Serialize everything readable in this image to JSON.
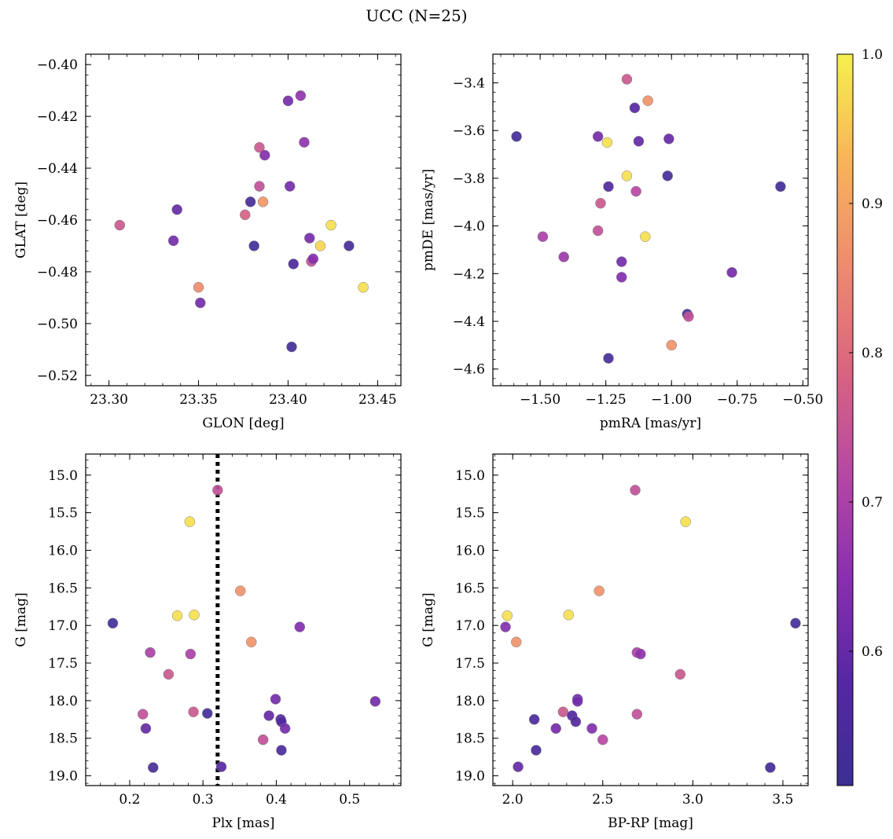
{
  "figure": {
    "suptitle": "UCC (N=25)"
  },
  "colorbar": {
    "cmap": "plasma",
    "range": [
      0.51,
      1.0
    ],
    "ticks": [
      0.6,
      0.7,
      0.8,
      0.9,
      1.0
    ],
    "tick_labels": [
      "0.6",
      "0.7",
      "0.8",
      "0.9",
      "1.0"
    ],
    "stops": [
      "#3b2f94",
      "#5627a2",
      "#8a2fb0",
      "#b748a4",
      "#d9667f",
      "#ee8c6e",
      "#f9b459",
      "#f5f04f"
    ]
  },
  "chart_data": [
    {
      "type": "scatter",
      "title": "",
      "xlabel": "GLON [deg]",
      "ylabel": "GLAT [deg]",
      "xlim": [
        23.287,
        23.463
      ],
      "ylim": [
        -0.524,
        -0.396
      ],
      "xticks": [
        23.3,
        23.35,
        23.4,
        23.45
      ],
      "xtick_labels": [
        "23.30",
        "23.35",
        "23.40",
        "23.45"
      ],
      "yticks": [
        -0.4,
        -0.42,
        -0.44,
        -0.46,
        -0.48,
        -0.5,
        -0.52
      ],
      "ytick_labels": [
        "−0.40",
        "−0.42",
        "−0.44",
        "−0.46",
        "−0.48",
        "−0.50",
        "−0.52"
      ],
      "points": [
        {
          "x": 23.306,
          "y": -0.462,
          "c": 0.76
        },
        {
          "x": 23.338,
          "y": -0.456,
          "c": 0.6
        },
        {
          "x": 23.336,
          "y": -0.468,
          "c": 0.62
        },
        {
          "x": 23.35,
          "y": -0.486,
          "c": 0.86
        },
        {
          "x": 23.351,
          "y": -0.492,
          "c": 0.62
        },
        {
          "x": 23.376,
          "y": -0.458,
          "c": 0.78
        },
        {
          "x": 23.379,
          "y": -0.453,
          "c": 0.54
        },
        {
          "x": 23.381,
          "y": -0.47,
          "c": 0.53
        },
        {
          "x": 23.384,
          "y": -0.432,
          "c": 0.76
        },
        {
          "x": 23.384,
          "y": -0.447,
          "c": 0.74
        },
        {
          "x": 23.386,
          "y": -0.453,
          "c": 0.88
        },
        {
          "x": 23.387,
          "y": -0.435,
          "c": 0.64
        },
        {
          "x": 23.4,
          "y": -0.414,
          "c": 0.62
        },
        {
          "x": 23.401,
          "y": -0.447,
          "c": 0.62
        },
        {
          "x": 23.402,
          "y": -0.509,
          "c": 0.53
        },
        {
          "x": 23.403,
          "y": -0.477,
          "c": 0.55
        },
        {
          "x": 23.407,
          "y": -0.412,
          "c": 0.66
        },
        {
          "x": 23.409,
          "y": -0.43,
          "c": 0.66
        },
        {
          "x": 23.412,
          "y": -0.467,
          "c": 0.62
        },
        {
          "x": 23.413,
          "y": -0.476,
          "c": 0.74
        },
        {
          "x": 23.414,
          "y": -0.475,
          "c": 0.64
        },
        {
          "x": 23.418,
          "y": -0.47,
          "c": 0.97
        },
        {
          "x": 23.424,
          "y": -0.462,
          "c": 0.98
        },
        {
          "x": 23.434,
          "y": -0.47,
          "c": 0.54
        },
        {
          "x": 23.442,
          "y": -0.486,
          "c": 0.98
        }
      ]
    },
    {
      "type": "scatter",
      "title": "",
      "xlabel": "pmRA [mas/yr]",
      "ylabel": "pmDE [mas/yr]",
      "xlim": [
        -1.68,
        -0.48
      ],
      "ylim": [
        -4.67,
        -3.28
      ],
      "xticks": [
        -1.5,
        -1.25,
        -1.0,
        -0.75,
        -0.5
      ],
      "xtick_labels": [
        "−1.50",
        "−1.25",
        "−1.00",
        "−0.75",
        "−0.50"
      ],
      "yticks": [
        -3.4,
        -3.6,
        -3.8,
        -4.0,
        -4.2,
        -4.4,
        -4.6
      ],
      "ytick_labels": [
        "−3.4",
        "−3.6",
        "−3.8",
        "−4.0",
        "−4.2",
        "−4.4",
        "−4.6"
      ],
      "points": [
        {
          "x": -1.59,
          "y": -3.625,
          "c": 0.53
        },
        {
          "x": -1.49,
          "y": -4.045,
          "c": 0.7
        },
        {
          "x": -1.41,
          "y": -4.13,
          "c": 0.68
        },
        {
          "x": -1.28,
          "y": -3.625,
          "c": 0.62
        },
        {
          "x": -1.28,
          "y": -4.02,
          "c": 0.74
        },
        {
          "x": -1.27,
          "y": -3.905,
          "c": 0.76
        },
        {
          "x": -1.245,
          "y": -3.65,
          "c": 0.98
        },
        {
          "x": -1.24,
          "y": -3.835,
          "c": 0.57
        },
        {
          "x": -1.24,
          "y": -4.555,
          "c": 0.54
        },
        {
          "x": -1.19,
          "y": -4.15,
          "c": 0.62
        },
        {
          "x": -1.19,
          "y": -4.215,
          "c": 0.64
        },
        {
          "x": -1.17,
          "y": -3.385,
          "c": 0.76
        },
        {
          "x": -1.17,
          "y": -3.79,
          "c": 0.98
        },
        {
          "x": -1.14,
          "y": -3.505,
          "c": 0.58
        },
        {
          "x": -1.135,
          "y": -3.855,
          "c": 0.72
        },
        {
          "x": -1.125,
          "y": -3.645,
          "c": 0.6
        },
        {
          "x": -1.1,
          "y": -4.045,
          "c": 0.98
        },
        {
          "x": -1.09,
          "y": -3.475,
          "c": 0.87
        },
        {
          "x": -1.015,
          "y": -3.79,
          "c": 0.54
        },
        {
          "x": -1.01,
          "y": -3.635,
          "c": 0.6
        },
        {
          "x": -1.0,
          "y": -4.5,
          "c": 0.87
        },
        {
          "x": -0.94,
          "y": -4.37,
          "c": 0.53
        },
        {
          "x": -0.935,
          "y": -4.38,
          "c": 0.74
        },
        {
          "x": -0.77,
          "y": -4.195,
          "c": 0.62
        },
        {
          "x": -0.585,
          "y": -3.835,
          "c": 0.53
        }
      ]
    },
    {
      "type": "scatter",
      "title": "",
      "xlabel": "Plx [mas]",
      "ylabel": "G [mag]",
      "xlim": [
        0.14,
        0.57
      ],
      "ylim": [
        19.13,
        14.72
      ],
      "inverted_y": true,
      "vline": {
        "x": 0.32,
        "style": "dotted",
        "color": "#000000"
      },
      "xticks": [
        0.2,
        0.3,
        0.4,
        0.5
      ],
      "xtick_labels": [
        "0.2",
        "0.3",
        "0.4",
        "0.5"
      ],
      "yticks": [
        15.0,
        15.5,
        16.0,
        16.5,
        17.0,
        17.5,
        18.0,
        18.5,
        19.0
      ],
      "ytick_labels": [
        "15.0",
        "15.5",
        "16.0",
        "16.5",
        "17.0",
        "17.5",
        "18.0",
        "18.5",
        "19.0"
      ],
      "points": [
        {
          "x": 0.177,
          "y": 16.97,
          "c": 0.53
        },
        {
          "x": 0.218,
          "y": 18.18,
          "c": 0.74
        },
        {
          "x": 0.222,
          "y": 18.37,
          "c": 0.6
        },
        {
          "x": 0.228,
          "y": 17.36,
          "c": 0.7
        },
        {
          "x": 0.232,
          "y": 18.89,
          "c": 0.54
        },
        {
          "x": 0.253,
          "y": 17.65,
          "c": 0.76
        },
        {
          "x": 0.265,
          "y": 16.87,
          "c": 0.98
        },
        {
          "x": 0.282,
          "y": 15.62,
          "c": 0.98
        },
        {
          "x": 0.283,
          "y": 17.38,
          "c": 0.7
        },
        {
          "x": 0.287,
          "y": 18.15,
          "c": 0.76
        },
        {
          "x": 0.288,
          "y": 16.86,
          "c": 0.98
        },
        {
          "x": 0.306,
          "y": 18.17,
          "c": 0.53
        },
        {
          "x": 0.32,
          "y": 15.2,
          "c": 0.74
        },
        {
          "x": 0.325,
          "y": 18.88,
          "c": 0.58
        },
        {
          "x": 0.351,
          "y": 16.54,
          "c": 0.87
        },
        {
          "x": 0.366,
          "y": 17.22,
          "c": 0.87
        },
        {
          "x": 0.382,
          "y": 18.52,
          "c": 0.74
        },
        {
          "x": 0.39,
          "y": 18.2,
          "c": 0.6
        },
        {
          "x": 0.399,
          "y": 17.98,
          "c": 0.62
        },
        {
          "x": 0.406,
          "y": 18.25,
          "c": 0.57
        },
        {
          "x": 0.407,
          "y": 18.28,
          "c": 0.57
        },
        {
          "x": 0.407,
          "y": 18.66,
          "c": 0.55
        },
        {
          "x": 0.412,
          "y": 18.37,
          "c": 0.62
        },
        {
          "x": 0.432,
          "y": 17.02,
          "c": 0.64
        },
        {
          "x": 0.535,
          "y": 18.01,
          "c": 0.62
        }
      ]
    },
    {
      "type": "scatter",
      "title": "",
      "xlabel": "BP-RP [mag]",
      "ylabel": "G [mag]",
      "xlim": [
        1.89,
        3.64
      ],
      "ylim": [
        19.13,
        14.72
      ],
      "inverted_y": true,
      "xticks": [
        2.0,
        2.5,
        3.0,
        3.5
      ],
      "xtick_labels": [
        "2.0",
        "2.5",
        "3.0",
        "3.5"
      ],
      "yticks": [
        15.0,
        15.5,
        16.0,
        16.5,
        17.0,
        17.5,
        18.0,
        18.5,
        19.0
      ],
      "ytick_labels": [
        "15.0",
        "15.5",
        "16.0",
        "16.5",
        "17.0",
        "17.5",
        "18.0",
        "18.5",
        "19.0"
      ],
      "points": [
        {
          "x": 1.96,
          "y": 17.02,
          "c": 0.64
        },
        {
          "x": 1.97,
          "y": 16.87,
          "c": 0.98
        },
        {
          "x": 2.02,
          "y": 17.22,
          "c": 0.87
        },
        {
          "x": 2.03,
          "y": 18.88,
          "c": 0.6
        },
        {
          "x": 2.12,
          "y": 18.25,
          "c": 0.55
        },
        {
          "x": 2.13,
          "y": 18.66,
          "c": 0.55
        },
        {
          "x": 2.24,
          "y": 18.37,
          "c": 0.62
        },
        {
          "x": 2.28,
          "y": 18.15,
          "c": 0.76
        },
        {
          "x": 2.31,
          "y": 16.86,
          "c": 0.98
        },
        {
          "x": 2.33,
          "y": 18.2,
          "c": 0.57
        },
        {
          "x": 2.35,
          "y": 18.28,
          "c": 0.57
        },
        {
          "x": 2.36,
          "y": 17.98,
          "c": 0.62
        },
        {
          "x": 2.36,
          "y": 18.01,
          "c": 0.62
        },
        {
          "x": 2.44,
          "y": 18.37,
          "c": 0.64
        },
        {
          "x": 2.48,
          "y": 16.54,
          "c": 0.87
        },
        {
          "x": 2.5,
          "y": 18.52,
          "c": 0.72
        },
        {
          "x": 2.68,
          "y": 15.2,
          "c": 0.74
        },
        {
          "x": 2.69,
          "y": 18.18,
          "c": 0.74
        },
        {
          "x": 2.69,
          "y": 17.36,
          "c": 0.7
        },
        {
          "x": 2.71,
          "y": 17.38,
          "c": 0.66
        },
        {
          "x": 2.93,
          "y": 17.65,
          "c": 0.76
        },
        {
          "x": 2.96,
          "y": 15.62,
          "c": 0.98
        },
        {
          "x": 3.43,
          "y": 18.89,
          "c": 0.53
        },
        {
          "x": 3.57,
          "y": 16.97,
          "c": 0.53
        }
      ]
    }
  ]
}
